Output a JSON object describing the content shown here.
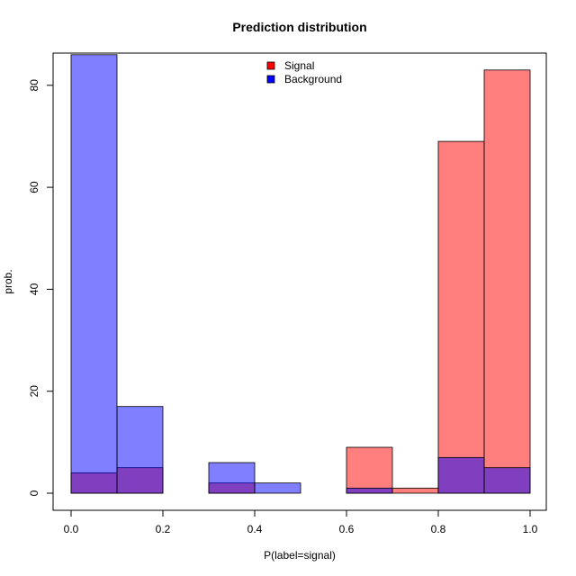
{
  "chart_data": {
    "type": "bar",
    "title": "Prediction distribution",
    "xlabel": "P(label=signal)",
    "ylabel": "prob.",
    "xlim": [
      0,
      1
    ],
    "ylim": [
      0,
      86
    ],
    "bin_edges": [
      0,
      0.1,
      0.2,
      0.3,
      0.4,
      0.5,
      0.6,
      0.7,
      0.8,
      0.9,
      1.0
    ],
    "xticks": [
      "0.0",
      "0.2",
      "0.4",
      "0.6",
      "0.8",
      "1.0"
    ],
    "xtick_values": [
      0,
      0.2,
      0.4,
      0.6,
      0.8,
      1.0
    ],
    "yticks": [
      "0",
      "20",
      "40",
      "60",
      "80"
    ],
    "ytick_values": [
      0,
      20,
      40,
      60,
      80
    ],
    "series": [
      {
        "name": "Signal",
        "color": "#ff0000",
        "fill": "rgba(255,0,0,0.5)",
        "values": [
          4,
          5,
          0,
          2,
          0,
          0,
          9,
          1,
          69,
          83
        ]
      },
      {
        "name": "Background",
        "color": "#0000ff",
        "fill": "rgba(0,0,255,0.5)",
        "values": [
          86,
          17,
          0,
          6,
          2,
          0,
          1,
          0,
          7,
          5
        ]
      }
    ],
    "legend": {
      "position": "top-center",
      "entries": [
        "Signal",
        "Background"
      ]
    },
    "grid": false
  }
}
